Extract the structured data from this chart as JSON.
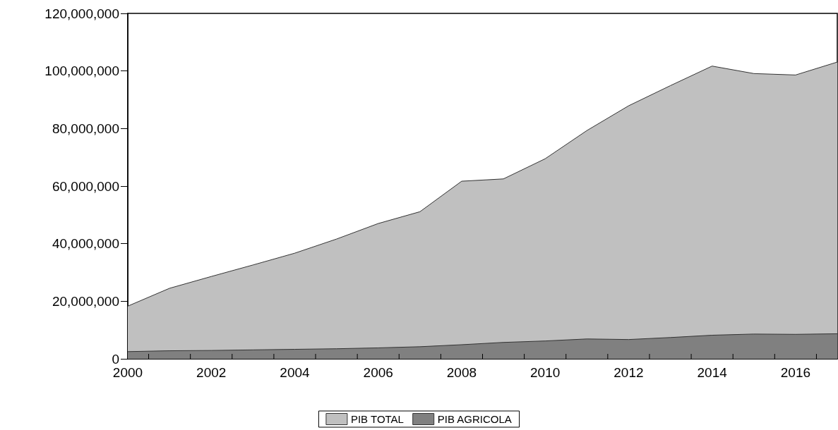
{
  "chart_data": {
    "type": "area",
    "x": [
      2000,
      2001,
      2002,
      2003,
      2004,
      2005,
      2006,
      2007,
      2008,
      2009,
      2010,
      2011,
      2012,
      2013,
      2014,
      2015,
      2016,
      2017
    ],
    "series": [
      {
        "name": "PIB TOTAL",
        "color": "#c0c0c0",
        "values": [
          18300000,
          24500000,
          28600000,
          32600000,
          36700000,
          41600000,
          47000000,
          51100000,
          61700000,
          62500000,
          69500000,
          79300000,
          87900000,
          94900000,
          101700000,
          99100000,
          98600000,
          103100000
        ]
      },
      {
        "name": "PIB AGRICOLA",
        "color": "#808080",
        "values": [
          2500000,
          2800000,
          2900000,
          3100000,
          3300000,
          3500000,
          3800000,
          4200000,
          4900000,
          5700000,
          6200000,
          6900000,
          6700000,
          7400000,
          8200000,
          8600000,
          8500000,
          8700000
        ]
      }
    ],
    "xlim": [
      2000,
      2017
    ],
    "xticks": [
      2000,
      {
        "value": 2000.5,
        "label": null
      },
      {
        "value": 2001.5,
        "label": null
      },
      2002,
      {
        "value": 2002.5,
        "label": null
      },
      {
        "value": 2003.5,
        "label": null
      },
      2004,
      {
        "value": 2004.5,
        "label": null
      },
      {
        "value": 2005.5,
        "label": null
      },
      2006,
      {
        "value": 2006.5,
        "label": null
      },
      {
        "value": 2007.5,
        "label": null
      },
      2008,
      {
        "value": 2008.5,
        "label": null
      },
      {
        "value": 2009.5,
        "label": null
      },
      2010,
      {
        "value": 2010.5,
        "label": null
      },
      {
        "value": 2011.5,
        "label": null
      },
      2012,
      {
        "value": 2012.5,
        "label": null
      },
      {
        "value": 2013.5,
        "label": null
      },
      2014,
      {
        "value": 2014.5,
        "label": null
      },
      {
        "value": 2015.5,
        "label": null
      },
      2016,
      {
        "value": 2016.5,
        "label": null
      }
    ],
    "ylim": [
      0,
      120000000
    ],
    "yticks": [
      0,
      {
        "value": 20000000,
        "label": "20,000,000"
      },
      {
        "value": 40000000,
        "label": "40,000,000"
      },
      {
        "value": 60000000,
        "label": "60,000,000"
      },
      {
        "value": 80000000,
        "label": "80,000,000"
      },
      {
        "value": 100000000,
        "label": "100,000,000"
      },
      {
        "value": 120000000,
        "label": "120,000,000"
      }
    ],
    "grid": false,
    "legend": "bottom",
    "marker": "none"
  }
}
